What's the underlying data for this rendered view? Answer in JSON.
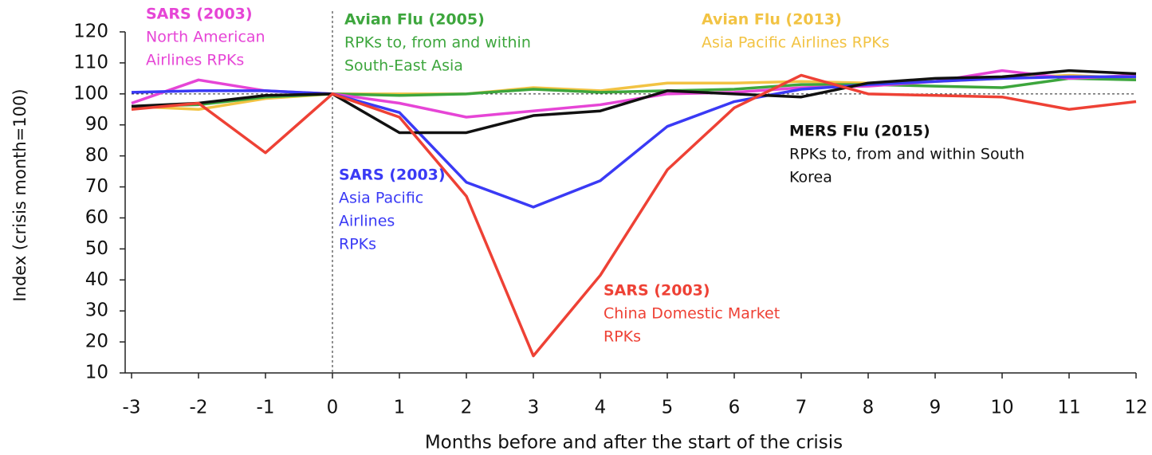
{
  "chart_data": {
    "type": "line",
    "x_label": "Months before and after the start of the crisis",
    "y_label": "Index (crisis month=100)",
    "x": [
      -3,
      -2,
      -1,
      0,
      1,
      2,
      3,
      4,
      5,
      6,
      7,
      8,
      9,
      10,
      11,
      12
    ],
    "xlim": [
      -3,
      12
    ],
    "xticks": [
      -3,
      -2,
      -1,
      0,
      1,
      2,
      3,
      4,
      5,
      6,
      7,
      8,
      9,
      10,
      11,
      12
    ],
    "ylim": [
      10,
      120
    ],
    "yticks": [
      10,
      20,
      30,
      40,
      50,
      60,
      70,
      80,
      90,
      100,
      110,
      120
    ],
    "reference_y": 100,
    "reference_x": 0,
    "series": [
      {
        "name": "SARS (2003)",
        "label": [
          "North American",
          "Airlines RPKs"
        ],
        "color": "#e645d6",
        "values": [
          97,
          104.5,
          101,
          100,
          97,
          92.5,
          94.5,
          96.5,
          100,
          100.5,
          102,
          102.5,
          104,
          107.5,
          105,
          106
        ]
      },
      {
        "name": "Avian Flu (2005)",
        "label": [
          "RPKs to, from and within",
          "South-East Asia"
        ],
        "color": "#3da63d",
        "values": [
          96,
          96.5,
          99,
          100,
          99.5,
          100,
          101.5,
          100.5,
          101,
          101.5,
          103,
          103,
          102.5,
          102,
          105,
          104.5
        ]
      },
      {
        "name": "Avian Flu (2013)",
        "label": [
          "Asia Pacific Airlines RPKs"
        ],
        "color": "#f2c343",
        "values": [
          96,
          95,
          98.5,
          100,
          100,
          100,
          102,
          101,
          103.5,
          103.5,
          104,
          103.5,
          104,
          105,
          106,
          105
        ]
      },
      {
        "name": "MERS Flu (2015)",
        "label": [
          "RPKs to, from and within South",
          "Korea"
        ],
        "color": "#111111",
        "values": [
          96,
          97,
          99.5,
          100,
          87.5,
          87.5,
          93,
          94.5,
          101,
          100,
          99,
          103.5,
          105,
          105.5,
          107.5,
          106.5
        ]
      },
      {
        "name": "SARS (2003)",
        "label": [
          "Asia Pacific",
          "Airlines",
          "RPKs"
        ],
        "color": "#3a3af5",
        "values": [
          100.5,
          101,
          101,
          100,
          94,
          71.5,
          63.5,
          72,
          89.5,
          97.5,
          101.5,
          103,
          104,
          105,
          105.5,
          105.5
        ]
      },
      {
        "name": "SARS (2003)",
        "label": [
          "China Domestic Market",
          "RPKs"
        ],
        "color": "#ee4135",
        "values": [
          95,
          97,
          81,
          100,
          92.5,
          67,
          15.5,
          41.5,
          75.5,
          95.5,
          106,
          100,
          99.5,
          99,
          95,
          97.5
        ]
      }
    ]
  }
}
